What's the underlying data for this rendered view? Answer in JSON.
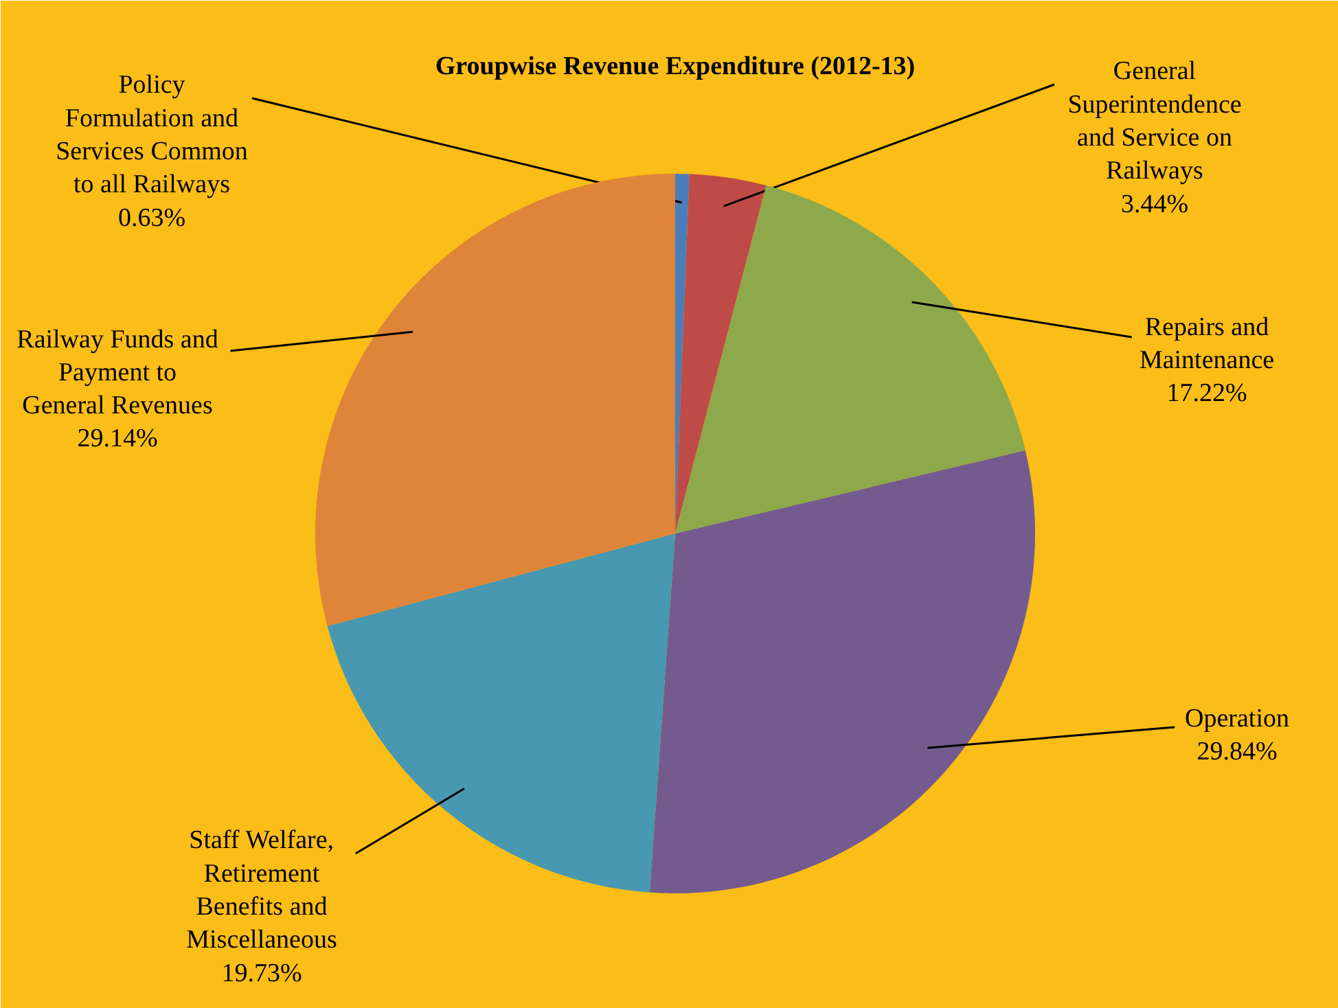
{
  "chart_data": {
    "type": "pie",
    "title": "Groupwise Revenue Expenditure (2012-13)",
    "categories": [
      "Policy Formulation and Services Common to all Railways",
      "General Superintendence and Service on Railways",
      "Repairs and Maintenance",
      "Operation",
      "Staff Welfare, Retirement Benefits and Miscellaneous",
      "Railway Funds and Payment to General Revenues"
    ],
    "values": [
      0.63,
      3.44,
      17.22,
      29.84,
      19.73,
      29.14
    ],
    "value_labels": [
      "0.63%",
      "3.44%",
      "17.22%",
      "29.84%",
      "19.73%",
      "29.14%"
    ],
    "colors": [
      "#4a7ebb",
      "#be4b48",
      "#8ea94c",
      "#735b8f",
      "#4798b0",
      "#de8539"
    ]
  }
}
